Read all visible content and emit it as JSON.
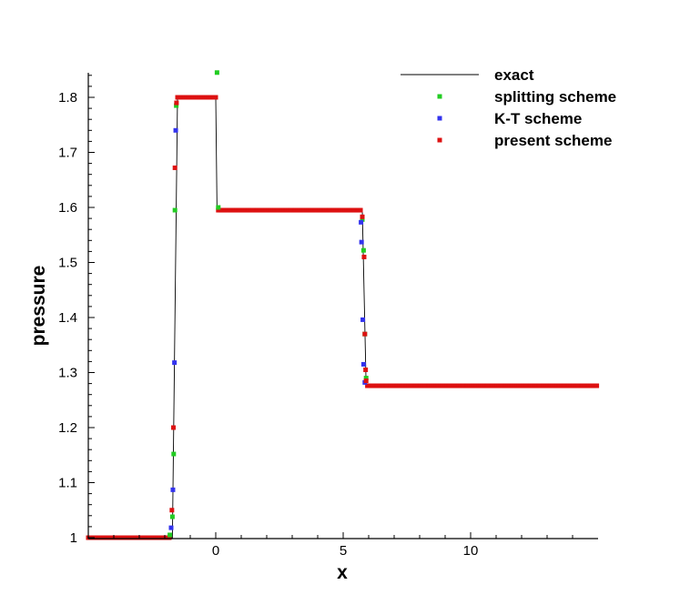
{
  "chart_data": {
    "type": "scatter",
    "xlabel": "x",
    "ylabel": "pressure",
    "xlim": [
      -5,
      15
    ],
    "ylim": [
      1.0,
      1.85
    ],
    "xticks": [
      0,
      5,
      10
    ],
    "yticks": [
      1,
      1.1,
      1.2,
      1.3,
      1.4,
      1.5,
      1.6,
      1.7,
      1.8
    ],
    "grid": false,
    "legend_position": "top-right",
    "series": [
      {
        "name": "exact",
        "style": "line",
        "color": "#000000",
        "points": [
          [
            -5,
            1.0
          ],
          [
            -1.7,
            1.0
          ],
          [
            -1.5,
            1.8
          ],
          [
            0.0,
            1.8
          ],
          [
            0.05,
            1.595
          ],
          [
            5.75,
            1.595
          ],
          [
            5.9,
            1.276
          ],
          [
            15,
            1.276
          ]
        ]
      },
      {
        "name": "splitting scheme",
        "style": "marker",
        "color": "#22cc22",
        "points": [
          [
            -1.8,
            1.005
          ],
          [
            -1.7,
            1.038
          ],
          [
            -1.65,
            1.152
          ],
          [
            -1.6,
            1.595
          ],
          [
            -1.55,
            1.785
          ],
          [
            0.05,
            1.845
          ],
          [
            0.1,
            1.6
          ],
          [
            5.75,
            1.578
          ],
          [
            5.8,
            1.522
          ],
          [
            5.85,
            1.37
          ],
          [
            5.9,
            1.29
          ]
        ]
      },
      {
        "name": "K-T scheme",
        "style": "marker",
        "color": "#3333ee",
        "points": [
          [
            -1.75,
            1.018
          ],
          [
            -1.68,
            1.087
          ],
          [
            -1.62,
            1.318
          ],
          [
            -1.57,
            1.74
          ],
          [
            5.7,
            1.573
          ],
          [
            5.72,
            1.537
          ],
          [
            5.77,
            1.396
          ],
          [
            5.8,
            1.315
          ],
          [
            5.85,
            1.282
          ]
        ]
      },
      {
        "name": "present scheme",
        "style": "marker",
        "color": "#dd1111",
        "points": [
          [
            -1.72,
            1.05
          ],
          [
            -1.66,
            1.2
          ],
          [
            -1.6,
            1.672
          ],
          [
            -1.54,
            1.79
          ],
          [
            5.75,
            1.583
          ],
          [
            5.82,
            1.51
          ],
          [
            5.85,
            1.37
          ],
          [
            5.88,
            1.305
          ],
          [
            5.9,
            1.285
          ]
        ]
      }
    ]
  }
}
